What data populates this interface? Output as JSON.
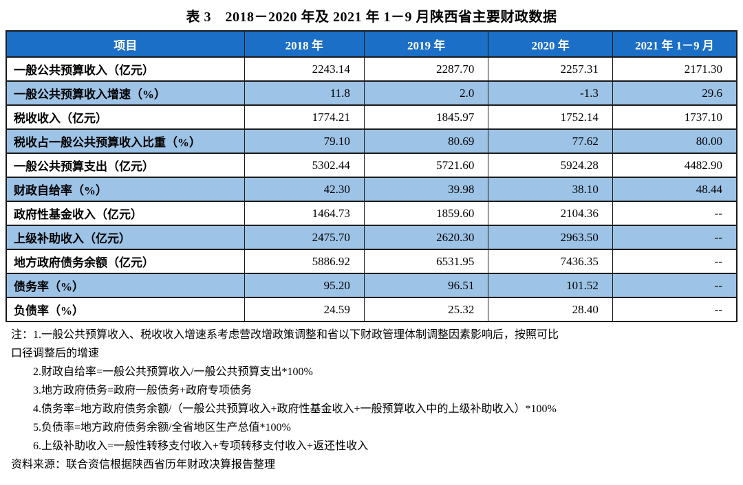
{
  "title": "表 3　2018－2020 年及 2021 年 1－9 月陕西省主要财政数据",
  "colors": {
    "header_bg": "#1b6fc6",
    "header_text": "#ffffff",
    "row_shade": "#9dc3e6",
    "border": "#1a1a1a"
  },
  "chart_data": {
    "type": "table",
    "title": "表 3　2018－2020 年及 2021 年 1－9 月陕西省主要财政数据",
    "categories": [
      "2018 年",
      "2019 年",
      "2020 年",
      "2021 年 1－9 月"
    ],
    "series": [
      {
        "name": "一般公共预算收入（亿元）",
        "values": [
          2243.14,
          2287.7,
          2257.31,
          2171.3
        ]
      },
      {
        "name": "一般公共预算收入增速（%）",
        "values": [
          11.8,
          2.0,
          -1.3,
          29.6
        ]
      },
      {
        "name": "税收收入（亿元）",
        "values": [
          1774.21,
          1845.97,
          1752.14,
          1737.1
        ]
      },
      {
        "name": "税收占一般公共预算收入比重（%）",
        "values": [
          79.1,
          80.69,
          77.62,
          80.0
        ]
      },
      {
        "name": "一般公共预算支出（亿元）",
        "values": [
          5302.44,
          5721.6,
          5924.28,
          4482.9
        ]
      },
      {
        "name": "财政自给率（%）",
        "values": [
          42.3,
          39.98,
          38.1,
          48.44
        ]
      },
      {
        "name": "政府性基金收入（亿元）",
        "values": [
          1464.73,
          1859.6,
          2104.36,
          null
        ]
      },
      {
        "name": "上级补助收入（亿元）",
        "values": [
          2475.7,
          2620.3,
          2963.5,
          null
        ]
      },
      {
        "name": "地方政府债务余额（亿元）",
        "values": [
          5886.92,
          6531.95,
          7436.35,
          null
        ]
      },
      {
        "name": "债务率（%）",
        "values": [
          95.2,
          96.51,
          101.52,
          null
        ]
      },
      {
        "name": "负债率（%）",
        "values": [
          24.59,
          25.32,
          28.4,
          null
        ]
      }
    ]
  },
  "table": {
    "headers": [
      "项目",
      "2018 年",
      "2019 年",
      "2020 年",
      "2021 年 1－9 月"
    ],
    "rows": [
      {
        "label": "一般公共预算收入（亿元）",
        "values": [
          "2243.14",
          "2287.70",
          "2257.31",
          "2171.30"
        ]
      },
      {
        "label": "一般公共预算收入增速（%）",
        "values": [
          "11.8",
          "2.0",
          "-1.3",
          "29.6"
        ]
      },
      {
        "label": "税收收入（亿元）",
        "values": [
          "1774.21",
          "1845.97",
          "1752.14",
          "1737.10"
        ]
      },
      {
        "label": "税收占一般公共预算收入比重（%）",
        "values": [
          "79.10",
          "80.69",
          "77.62",
          "80.00"
        ]
      },
      {
        "label": "一般公共预算支出（亿元）",
        "values": [
          "5302.44",
          "5721.60",
          "5924.28",
          "4482.90"
        ]
      },
      {
        "label": "财政自给率（%）",
        "values": [
          "42.30",
          "39.98",
          "38.10",
          "48.44"
        ]
      },
      {
        "label": "政府性基金收入（亿元）",
        "values": [
          "1464.73",
          "1859.60",
          "2104.36",
          "--"
        ]
      },
      {
        "label": "上级补助收入（亿元）",
        "values": [
          "2475.70",
          "2620.30",
          "2963.50",
          "--"
        ]
      },
      {
        "label": "地方政府债务余额（亿元）",
        "values": [
          "5886.92",
          "6531.95",
          "7436.35",
          "--"
        ]
      },
      {
        "label": "债务率（%）",
        "values": [
          "95.20",
          "96.51",
          "101.52",
          "--"
        ]
      },
      {
        "label": "负债率（%）",
        "values": [
          "24.59",
          "25.32",
          "28.40",
          "--"
        ]
      }
    ]
  },
  "notes": {
    "lines": [
      {
        "text": "注：1.一般公共预算收入、税收收入增速系考虑营改增政策调整和省以下财政管理体制调整因素影响后，按照可比",
        "indent": 0
      },
      {
        "text": "口径调整后的增速",
        "indent": 0
      },
      {
        "text": "2.财政自给率=一般公共预算收入/一般公共预算支出*100%",
        "indent": 1
      },
      {
        "text": "3.地方政府债务=政府一般债务+政府专项债务",
        "indent": 1
      },
      {
        "text": "4.债务率=地方政府债务余额/（一般公共预算收入+政府性基金收入+一般预算收入中的上级补助收入）*100%",
        "indent": 1
      },
      {
        "text": "5.负债率=地方政府债务余额/全省地区生产总值*100%",
        "indent": 1
      },
      {
        "text": "6.上级补助收入=一般性转移支付收入+专项转移支付收入+返还性收入",
        "indent": 1
      },
      {
        "text": "资料来源：联合资信根据陕西省历年财政决算报告整理",
        "indent": 0
      }
    ]
  }
}
